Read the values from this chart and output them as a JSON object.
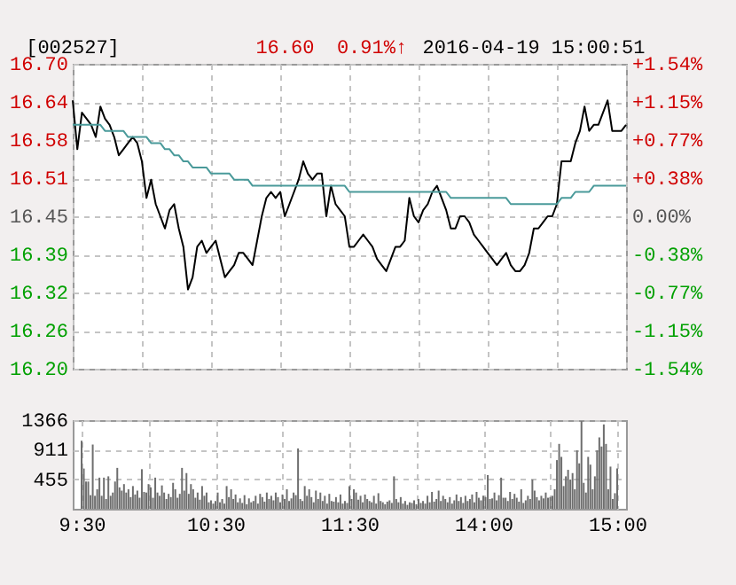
{
  "chart_data": [
    {
      "type": "line",
      "title": "[002527]",
      "annotations": [
        "16.60",
        "0.91%↑",
        "2016-04-19 15:00:51"
      ],
      "categories": [
        null,
        null,
        null,
        null,
        null,
        null,
        null,
        null,
        null,
        null,
        null,
        null,
        null,
        null,
        null,
        null,
        null,
        null,
        null,
        null,
        null,
        null,
        null,
        null,
        null,
        null,
        null,
        null,
        null,
        null,
        null,
        null,
        null,
        null,
        null,
        null,
        null,
        null,
        null,
        null,
        null,
        null,
        null,
        null,
        null,
        null,
        null,
        null,
        null,
        null,
        null,
        null,
        null,
        null,
        null,
        null,
        null,
        null,
        null,
        null,
        null,
        null,
        null,
        null,
        null,
        null,
        null,
        null,
        null,
        null,
        null,
        null,
        null,
        null,
        null,
        null,
        null,
        null,
        null,
        null,
        null,
        null,
        null,
        null,
        null,
        null,
        null,
        null,
        null,
        null,
        null,
        null,
        null,
        null,
        null,
        null,
        null,
        null,
        null,
        null,
        null,
        null,
        null,
        null,
        null,
        null,
        null,
        null,
        null,
        null,
        null,
        null,
        null,
        null,
        null,
        null,
        null,
        null,
        null,
        null,
        null
      ],
      "tick_labels": "y",
      "grid": true,
      "ylim": [
        16.2,
        16.7
      ],
      "yticks": [
        {
          "value": 16.7,
          "label": "16.70"
        },
        {
          "value": 16.6375,
          "label": "16.64"
        },
        {
          "value": 16.575,
          "label": "16.58"
        },
        {
          "value": 16.5125,
          "label": "16.51"
        },
        {
          "value": 16.45,
          "label": "16.45"
        },
        {
          "value": 16.3875,
          "label": "16.39"
        },
        {
          "value": 16.325,
          "label": "16.32"
        },
        {
          "value": 16.2625,
          "label": "16.26"
        },
        {
          "value": 16.2,
          "label": "16.20"
        }
      ],
      "y2lim": [
        -1.54,
        1.54
      ],
      "y2ticks": [
        {
          "value": 1.54,
          "label": "+1.54%"
        },
        {
          "value": 1.155,
          "label": "+1.15%"
        },
        {
          "value": 0.77,
          "label": "+0.77%"
        },
        {
          "value": 0.385,
          "label": "+0.38%"
        },
        {
          "value": 0,
          "label": "0.00%"
        },
        {
          "value": -0.385,
          "label": "-0.38%"
        },
        {
          "value": -0.77,
          "label": "-0.77%"
        },
        {
          "value": -1.155,
          "label": "-1.15%"
        },
        {
          "value": -1.54,
          "label": "-1.54%"
        }
      ],
      "series": [
        {
          "color": "#000000",
          "values": [
            16.64,
            16.56,
            16.62,
            16.61,
            16.6,
            16.58,
            16.63,
            16.61,
            16.6,
            16.58,
            16.55,
            16.56,
            16.57,
            16.58,
            16.57,
            16.54,
            16.48,
            16.51,
            16.47,
            16.45,
            16.43,
            16.46,
            16.47,
            16.43,
            16.4,
            16.33,
            16.35,
            16.4,
            16.41,
            16.39,
            16.4,
            16.41,
            16.38,
            16.35,
            16.36,
            16.37,
            16.39,
            16.39,
            16.38,
            16.37,
            16.41,
            16.45,
            16.48,
            16.49,
            16.48,
            16.49,
            16.45,
            16.47,
            16.49,
            16.51,
            16.54,
            16.52,
            16.51,
            16.52,
            16.52,
            16.45,
            16.5,
            16.47,
            16.46,
            16.45,
            16.4,
            16.4,
            16.41,
            16.42,
            16.41,
            16.4,
            16.38,
            16.37,
            16.36,
            16.38,
            16.4,
            16.4,
            16.41,
            16.48,
            16.45,
            16.44,
            16.46,
            16.47,
            16.49,
            16.5,
            16.48,
            16.46,
            16.43,
            16.43,
            16.45,
            16.45,
            16.44,
            16.42,
            16.41,
            16.4,
            16.39,
            16.38,
            16.37,
            16.38,
            16.39,
            16.37,
            16.36,
            16.36,
            16.37,
            16.39,
            16.43,
            16.43,
            16.44,
            16.45,
            16.45,
            16.47,
            16.54,
            16.54,
            16.54,
            16.57,
            16.59,
            16.63,
            16.59,
            16.6,
            16.6,
            16.62,
            16.64,
            16.59,
            16.59,
            16.59,
            16.6
          ]
        },
        {
          "color": "#4a9a9a",
          "values": [
            16.6,
            16.6,
            16.6,
            16.6,
            16.6,
            16.6,
            16.6,
            16.59,
            16.59,
            16.59,
            16.59,
            16.59,
            16.58,
            16.58,
            16.58,
            16.58,
            16.58,
            16.57,
            16.57,
            16.57,
            16.56,
            16.56,
            16.55,
            16.55,
            16.54,
            16.54,
            16.53,
            16.53,
            16.53,
            16.53,
            16.52,
            16.52,
            16.52,
            16.52,
            16.52,
            16.51,
            16.51,
            16.51,
            16.51,
            16.5,
            16.5,
            16.5,
            16.5,
            16.5,
            16.5,
            16.5,
            16.5,
            16.5,
            16.5,
            16.5,
            16.5,
            16.5,
            16.5,
            16.5,
            16.5,
            16.5,
            16.5,
            16.5,
            16.5,
            16.5,
            16.49,
            16.49,
            16.49,
            16.49,
            16.49,
            16.49,
            16.49,
            16.49,
            16.49,
            16.49,
            16.49,
            16.49,
            16.49,
            16.49,
            16.49,
            16.49,
            16.49,
            16.49,
            16.49,
            16.49,
            16.49,
            16.49,
            16.48,
            16.48,
            16.48,
            16.48,
            16.48,
            16.48,
            16.48,
            16.48,
            16.48,
            16.48,
            16.48,
            16.48,
            16.48,
            16.47,
            16.47,
            16.47,
            16.47,
            16.47,
            16.47,
            16.47,
            16.47,
            16.47,
            16.47,
            16.47,
            16.48,
            16.48,
            16.48,
            16.49,
            16.49,
            16.49,
            16.49,
            16.5,
            16.5,
            16.5,
            16.5,
            16.5,
            16.5,
            16.5,
            16.5
          ]
        }
      ]
    },
    {
      "type": "bar",
      "color": "#6e6e6e",
      "categories": [
        "9:30",
        null,
        null,
        null,
        null,
        null,
        null,
        null,
        null,
        null,
        null,
        null,
        null,
        null,
        null,
        null,
        null,
        null,
        null,
        null,
        null,
        null,
        null,
        null,
        null,
        null,
        null,
        null,
        null,
        null,
        null,
        null,
        null,
        null,
        null,
        null,
        null,
        null,
        null,
        null,
        null,
        null,
        null,
        null,
        null,
        null,
        null,
        null,
        null,
        null,
        null,
        null,
        null,
        null,
        null,
        null,
        null,
        null,
        null,
        null,
        "10:30",
        null,
        null,
        null,
        null,
        null,
        null,
        null,
        null,
        null,
        null,
        null,
        null,
        null,
        null,
        null,
        null,
        null,
        null,
        null,
        null,
        null,
        null,
        null,
        null,
        null,
        null,
        null,
        null,
        null,
        null,
        null,
        null,
        null,
        null,
        null,
        null,
        null,
        null,
        null,
        null,
        null,
        null,
        null,
        null,
        null,
        null,
        null,
        null,
        null,
        null,
        null,
        null,
        null,
        null,
        null,
        null,
        null,
        null,
        null,
        "11:30",
        null,
        null,
        null,
        null,
        null,
        null,
        null,
        null,
        null,
        null,
        null,
        null,
        null,
        null,
        null,
        null,
        null,
        null,
        null,
        null,
        null,
        null,
        null,
        null,
        null,
        null,
        null,
        null,
        null,
        null,
        null,
        null,
        null,
        null,
        null,
        null,
        null,
        null,
        null,
        null,
        null,
        null,
        null,
        null,
        null,
        null,
        null,
        null,
        null,
        null,
        null,
        null,
        null,
        null,
        null,
        null,
        null,
        null,
        null,
        "14:00",
        null,
        null,
        null,
        null,
        null,
        null,
        null,
        null,
        null,
        null,
        null,
        null,
        null,
        null,
        null,
        null,
        null,
        null,
        null,
        null,
        null,
        null,
        null,
        null,
        null,
        null,
        null,
        null,
        null,
        null,
        null,
        null,
        null,
        null,
        null,
        null,
        null,
        null,
        null,
        null,
        null,
        null,
        null,
        null,
        null,
        null,
        null,
        null,
        null,
        null,
        null,
        null,
        null,
        null,
        null,
        null,
        null,
        null,
        null,
        "15:00"
      ],
      "ylim": [
        0,
        1366
      ],
      "yticks": [
        455,
        911,
        1366
      ],
      "grid": true,
      "values": [
        1050,
        620,
        420,
        420,
        210,
        990,
        200,
        300,
        480,
        200,
        480,
        150,
        500,
        200,
        250,
        420,
        630,
        330,
        280,
        380,
        250,
        300,
        180,
        350,
        220,
        280,
        170,
        610,
        260,
        250,
        380,
        330,
        170,
        480,
        250,
        200,
        360,
        250,
        150,
        230,
        180,
        400,
        300,
        170,
        230,
        630,
        280,
        550,
        230,
        380,
        300,
        170,
        250,
        140,
        350,
        200,
        250,
        100,
        130,
        80,
        120,
        250,
        100,
        150,
        80,
        350,
        180,
        300,
        150,
        220,
        100,
        160,
        90,
        210,
        70,
        160,
        100,
        120,
        200,
        80,
        230,
        180,
        110,
        250,
        150,
        200,
        130,
        250,
        180,
        100,
        220,
        150,
        300,
        120,
        160,
        250,
        210,
        930,
        150,
        120,
        350,
        200,
        300,
        180,
        100,
        280,
        150,
        250,
        120,
        200,
        80,
        230,
        120,
        110,
        180,
        100,
        220,
        80,
        120,
        90,
        350,
        150,
        300,
        250,
        140,
        200,
        100,
        220,
        150,
        120,
        100,
        200,
        80,
        240,
        120,
        100,
        70,
        110,
        130,
        90,
        500,
        150,
        100,
        180,
        80,
        120,
        60,
        100,
        90,
        130,
        70,
        150,
        90,
        120,
        80,
        200,
        100,
        260,
        110,
        150,
        280,
        120,
        200,
        150,
        100,
        180,
        80,
        130,
        220,
        120,
        180,
        90,
        200,
        120,
        150,
        220,
        100,
        260,
        170,
        130,
        200,
        180,
        520,
        150,
        160,
        250,
        130,
        210,
        480,
        170,
        170,
        120,
        260,
        150,
        230,
        170,
        110,
        300,
        90,
        130,
        200,
        150,
        450,
        280,
        180,
        130,
        200,
        160,
        250,
        170,
        180,
        200,
        300,
        750,
        1000,
        800,
        350,
        500,
        600,
        450,
        550,
        300,
        900,
        700,
        1350,
        400,
        250,
        800,
        680,
        300,
        500,
        900,
        1100,
        960,
        1300,
        1000,
        300,
        650,
        150,
        240,
        620
      ]
    }
  ]
}
